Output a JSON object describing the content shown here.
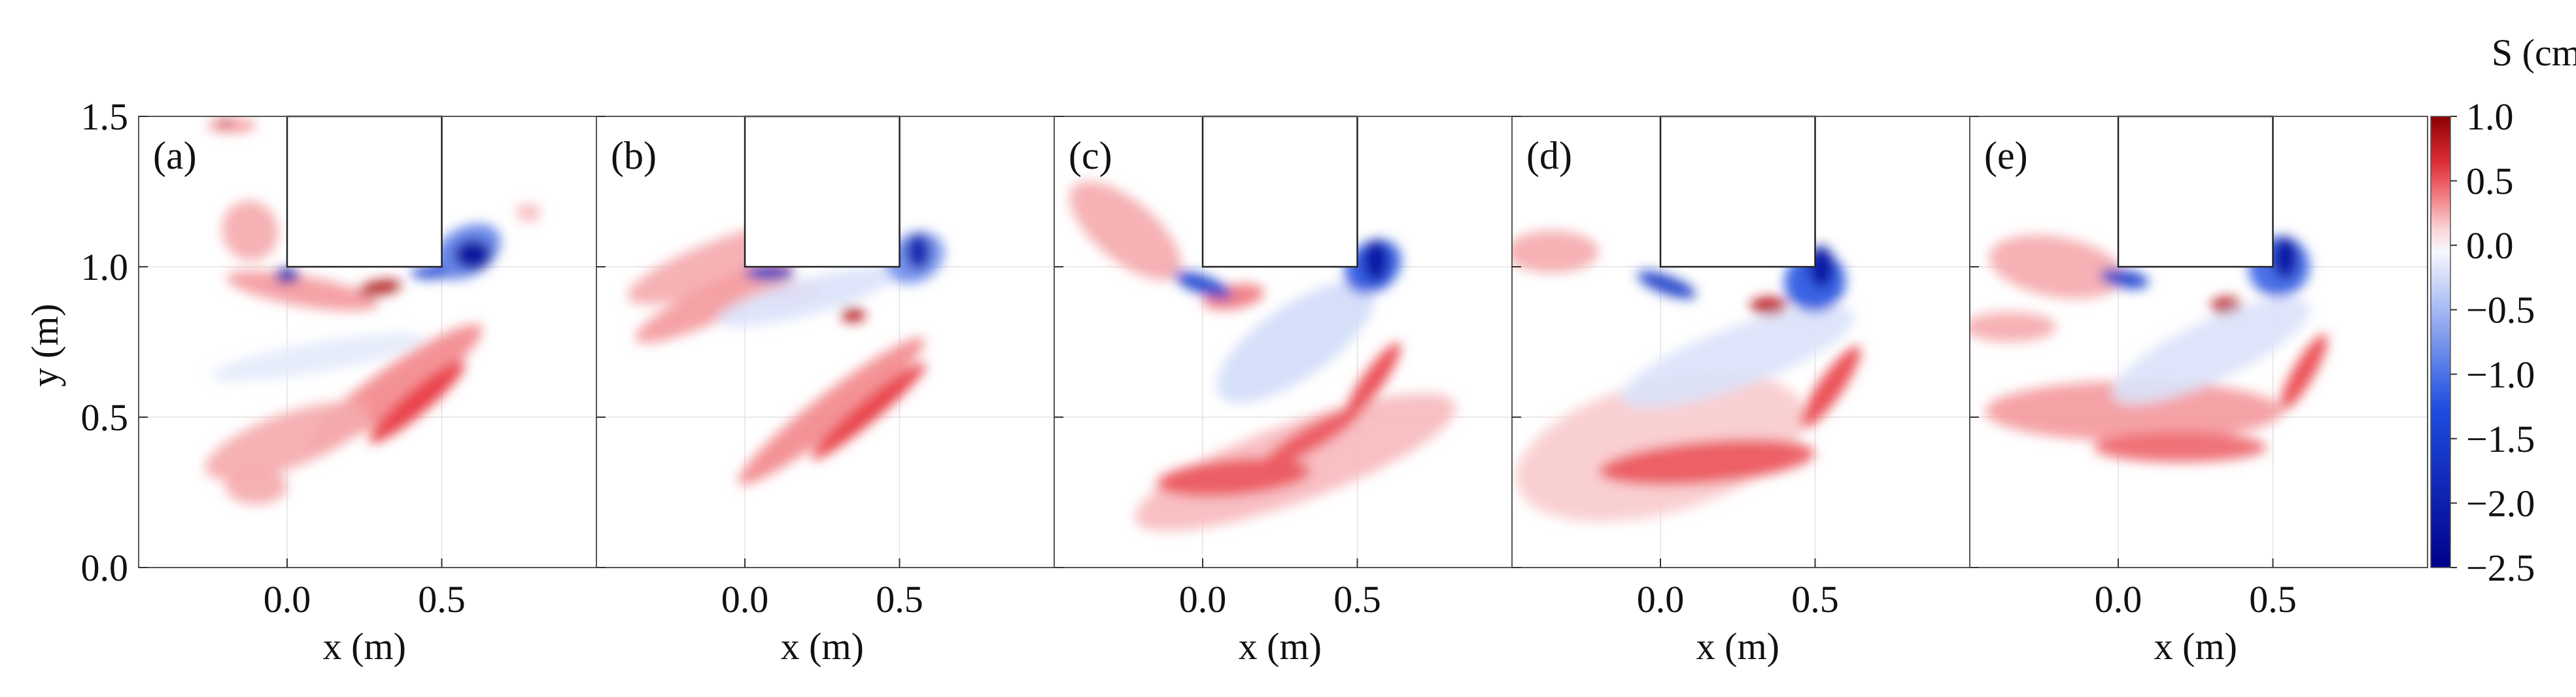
{
  "chart_data": {
    "type": "heatmap",
    "title": "",
    "shared_xlabel": "x (m)",
    "shared_ylabel": "y (m)",
    "xlim": [
      -0.48,
      1.0
    ],
    "ylim": [
      0.0,
      1.5
    ],
    "x_ticks": [
      "0.0",
      "0.5"
    ],
    "y_ticks": [
      "0.0",
      "0.5",
      "1.0",
      "1.5"
    ],
    "structure_box": {
      "x": [
        0.0,
        0.5
      ],
      "y": [
        1.0,
        1.5
      ]
    },
    "colorbar": {
      "title": "S (cm)",
      "ticks": [
        "1.0",
        "0.5",
        "0.0",
        "−0.5",
        "−1.0",
        "−1.5",
        "−2.0",
        "−2.5"
      ],
      "range": [
        -2.5,
        1.0
      ],
      "colors": {
        "max": "#8b0000",
        "positive": "#e8343c",
        "zero": "#ffffff",
        "negative": "#1f4fe0",
        "min": "#00008b"
      }
    },
    "panels": [
      {
        "label": "(a)",
        "blobs": [
          {
            "x": -0.18,
            "y": 1.47,
            "rx": 0.08,
            "ry": 0.025,
            "a": 0,
            "v": 0.3
          },
          {
            "x": -0.2,
            "y": 1.48,
            "rx": 0.02,
            "ry": 0.012,
            "a": 0,
            "v": 0.9
          },
          {
            "x": -0.12,
            "y": 1.12,
            "rx": 0.09,
            "ry": 0.1,
            "a": 20,
            "v": 0.25
          },
          {
            "x": 0.05,
            "y": 0.92,
            "rx": 0.25,
            "ry": 0.05,
            "a": -10,
            "v": 0.3
          },
          {
            "x": 0.3,
            "y": 0.93,
            "rx": 0.07,
            "ry": 0.025,
            "a": 10,
            "v": 0.85
          },
          {
            "x": 0.35,
            "y": 0.6,
            "rx": 0.34,
            "ry": 0.07,
            "a": 35,
            "v": 0.35
          },
          {
            "x": 0.42,
            "y": 0.55,
            "rx": 0.2,
            "ry": 0.04,
            "a": 40,
            "v": 0.6
          },
          {
            "x": 0.0,
            "y": 0.42,
            "rx": 0.28,
            "ry": 0.09,
            "a": 20,
            "v": 0.25
          },
          {
            "x": -0.1,
            "y": 0.27,
            "rx": 0.1,
            "ry": 0.06,
            "a": 0,
            "v": 0.25
          },
          {
            "x": 0.78,
            "y": 1.18,
            "rx": 0.04,
            "ry": 0.03,
            "a": 0,
            "v": 0.2
          },
          {
            "x": 0.1,
            "y": 0.7,
            "rx": 0.35,
            "ry": 0.05,
            "a": 10,
            "v": -0.15
          },
          {
            "x": 0.58,
            "y": 1.05,
            "rx": 0.12,
            "ry": 0.08,
            "a": 30,
            "v": -0.9
          },
          {
            "x": 0.6,
            "y": 1.04,
            "rx": 0.06,
            "ry": 0.05,
            "a": 0,
            "v": -2.3
          },
          {
            "x": 0.46,
            "y": 0.98,
            "rx": 0.06,
            "ry": 0.02,
            "a": 0,
            "v": -1.5
          },
          {
            "x": 0.0,
            "y": 0.97,
            "rx": 0.04,
            "ry": 0.025,
            "a": 0,
            "v": -2.0
          }
        ]
      },
      {
        "label": "(b)",
        "blobs": [
          {
            "x": -0.05,
            "y": 1.02,
            "rx": 0.35,
            "ry": 0.08,
            "a": 20,
            "v": 0.25
          },
          {
            "x": -0.1,
            "y": 0.88,
            "rx": 0.28,
            "ry": 0.06,
            "a": 25,
            "v": 0.3
          },
          {
            "x": 0.28,
            "y": 0.52,
            "rx": 0.38,
            "ry": 0.06,
            "a": 38,
            "v": 0.35
          },
          {
            "x": 0.4,
            "y": 0.52,
            "rx": 0.24,
            "ry": 0.035,
            "a": 40,
            "v": 0.6
          },
          {
            "x": 0.35,
            "y": 0.84,
            "rx": 0.04,
            "ry": 0.025,
            "a": 0,
            "v": 0.8
          },
          {
            "x": 0.12,
            "y": 0.92,
            "rx": 0.12,
            "ry": 0.04,
            "a": 0,
            "v": 0.25
          },
          {
            "x": 0.2,
            "y": 0.9,
            "rx": 0.3,
            "ry": 0.06,
            "a": 15,
            "v": -0.2
          },
          {
            "x": 0.55,
            "y": 1.03,
            "rx": 0.1,
            "ry": 0.08,
            "a": 30,
            "v": -0.8
          },
          {
            "x": 0.56,
            "y": 1.05,
            "rx": 0.04,
            "ry": 0.06,
            "a": 0,
            "v": -2.0
          },
          {
            "x": 0.08,
            "y": 0.98,
            "rx": 0.08,
            "ry": 0.025,
            "a": 0,
            "v": -1.6
          }
        ]
      },
      {
        "label": "(c)",
        "blobs": [
          {
            "x": -0.25,
            "y": 1.12,
            "rx": 0.22,
            "ry": 0.1,
            "a": -40,
            "v": 0.25
          },
          {
            "x": 0.3,
            "y": 0.35,
            "rx": 0.55,
            "ry": 0.13,
            "a": 20,
            "v": 0.2
          },
          {
            "x": 0.1,
            "y": 0.3,
            "rx": 0.25,
            "ry": 0.06,
            "a": 5,
            "v": 0.5
          },
          {
            "x": 0.35,
            "y": 0.43,
            "rx": 0.18,
            "ry": 0.04,
            "a": 30,
            "v": 0.5
          },
          {
            "x": 0.55,
            "y": 0.62,
            "rx": 0.15,
            "ry": 0.035,
            "a": 55,
            "v": 0.55
          },
          {
            "x": 0.3,
            "y": 0.75,
            "rx": 0.3,
            "ry": 0.12,
            "a": 35,
            "v": -0.25
          },
          {
            "x": 0.1,
            "y": 0.9,
            "rx": 0.1,
            "ry": 0.04,
            "a": 10,
            "v": 0.4
          },
          {
            "x": 0.55,
            "y": 1.0,
            "rx": 0.1,
            "ry": 0.08,
            "a": 40,
            "v": -1.2
          },
          {
            "x": 0.56,
            "y": 1.02,
            "rx": 0.04,
            "ry": 0.07,
            "a": 0,
            "v": -2.2
          },
          {
            "x": 0.0,
            "y": 0.94,
            "rx": 0.1,
            "ry": 0.03,
            "a": -20,
            "v": -1.5
          }
        ]
      },
      {
        "label": "(d)",
        "blobs": [
          {
            "x": 0.0,
            "y": 0.4,
            "rx": 0.48,
            "ry": 0.22,
            "a": 15,
            "v": 0.15
          },
          {
            "x": 0.15,
            "y": 0.35,
            "rx": 0.35,
            "ry": 0.07,
            "a": 5,
            "v": 0.5
          },
          {
            "x": -0.35,
            "y": 1.05,
            "rx": 0.15,
            "ry": 0.07,
            "a": 0,
            "v": 0.25
          },
          {
            "x": 0.55,
            "y": 0.6,
            "rx": 0.16,
            "ry": 0.04,
            "a": 55,
            "v": 0.55
          },
          {
            "x": 0.35,
            "y": 0.87,
            "rx": 0.06,
            "ry": 0.03,
            "a": 0,
            "v": 0.8
          },
          {
            "x": 0.25,
            "y": 0.7,
            "rx": 0.4,
            "ry": 0.1,
            "a": 20,
            "v": -0.2
          },
          {
            "x": 0.5,
            "y": 0.95,
            "rx": 0.1,
            "ry": 0.1,
            "a": 40,
            "v": -1.2
          },
          {
            "x": 0.52,
            "y": 1.0,
            "rx": 0.04,
            "ry": 0.07,
            "a": 0,
            "v": -2.2
          },
          {
            "x": 0.02,
            "y": 0.94,
            "rx": 0.1,
            "ry": 0.03,
            "a": -20,
            "v": -1.6
          }
        ]
      },
      {
        "label": "(e)",
        "blobs": [
          {
            "x": -0.2,
            "y": 1.0,
            "rx": 0.22,
            "ry": 0.1,
            "a": -10,
            "v": 0.25
          },
          {
            "x": -0.35,
            "y": 0.8,
            "rx": 0.15,
            "ry": 0.05,
            "a": 0,
            "v": 0.25
          },
          {
            "x": 0.05,
            "y": 0.52,
            "rx": 0.48,
            "ry": 0.1,
            "a": 0,
            "v": 0.3
          },
          {
            "x": 0.2,
            "y": 0.4,
            "rx": 0.28,
            "ry": 0.05,
            "a": 0,
            "v": 0.45
          },
          {
            "x": 0.6,
            "y": 0.65,
            "rx": 0.14,
            "ry": 0.035,
            "a": 60,
            "v": 0.55
          },
          {
            "x": 0.35,
            "y": 0.87,
            "rx": 0.05,
            "ry": 0.03,
            "a": 0,
            "v": 0.8
          },
          {
            "x": 0.3,
            "y": 0.72,
            "rx": 0.35,
            "ry": 0.1,
            "a": 25,
            "v": -0.2
          },
          {
            "x": 0.52,
            "y": 1.0,
            "rx": 0.1,
            "ry": 0.1,
            "a": 40,
            "v": -1.1
          },
          {
            "x": 0.54,
            "y": 1.03,
            "rx": 0.04,
            "ry": 0.07,
            "a": 0,
            "v": -2.2
          },
          {
            "x": 0.02,
            "y": 0.96,
            "rx": 0.08,
            "ry": 0.03,
            "a": -10,
            "v": -1.5
          }
        ]
      }
    ]
  }
}
